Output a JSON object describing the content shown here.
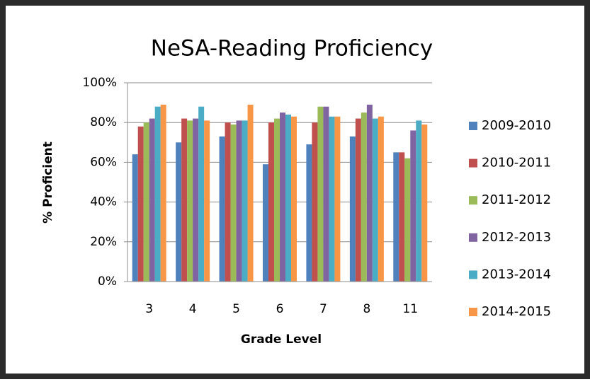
{
  "chart_data": {
    "type": "bar",
    "title": "NeSA-Reading Proficiency",
    "x_label": "Grade Level",
    "y_label": "% Proficient",
    "categories": [
      "3",
      "4",
      "5",
      "6",
      "7",
      "8",
      "11"
    ],
    "series": [
      {
        "name": "2009-2010",
        "color": "#4f81bd",
        "values": [
          64,
          70,
          73,
          59,
          69,
          73,
          65
        ]
      },
      {
        "name": "2010-2011",
        "color": "#c0504d",
        "values": [
          78,
          82,
          80,
          80,
          80,
          82,
          65
        ]
      },
      {
        "name": "2011-2012",
        "color": "#9bbb59",
        "values": [
          80,
          81,
          79,
          82,
          88,
          85,
          62
        ]
      },
      {
        "name": "2012-2013",
        "color": "#8064a2",
        "values": [
          82,
          82,
          81,
          85,
          88,
          89,
          76
        ]
      },
      {
        "name": "2013-2014",
        "color": "#4bacc6",
        "values": [
          88,
          88,
          81,
          84,
          83,
          82,
          81
        ]
      },
      {
        "name": "2014-2015",
        "color": "#f79646",
        "values": [
          89,
          81,
          89,
          83,
          83,
          83,
          79
        ]
      }
    ],
    "ylim": [
      0,
      100
    ],
    "yticks": [
      {
        "value": 0,
        "label": "0%"
      },
      {
        "value": 20,
        "label": "20%"
      },
      {
        "value": 40,
        "label": "40%"
      },
      {
        "value": 60,
        "label": "60%"
      },
      {
        "value": 80,
        "label": "80%"
      },
      {
        "value": 100,
        "label": "100%"
      }
    ],
    "grid": true,
    "legend": "right"
  }
}
